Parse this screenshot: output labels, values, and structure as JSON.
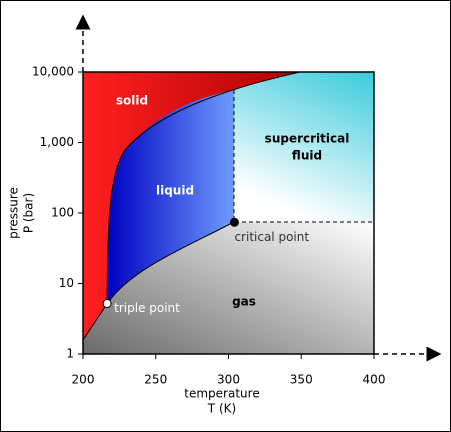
{
  "chart_data": {
    "type": "phase-diagram",
    "xlabel": [
      "temperature",
      "T (K)"
    ],
    "ylabel": [
      "pressure",
      "P (bar)"
    ],
    "xlim": [
      200,
      400
    ],
    "ylim": [
      1,
      10000
    ],
    "ylog": true,
    "xticks": [
      200,
      250,
      300,
      350,
      400
    ],
    "yticks": [
      1,
      10,
      100,
      {
        "value": 1000,
        "label": "1,000"
      },
      {
        "value": 10000,
        "label": "10,000"
      }
    ],
    "regions": [
      [
        "solid"
      ],
      [
        "liquid"
      ],
      [
        "supercritical",
        "fluid"
      ],
      [
        "gas"
      ]
    ],
    "series": [
      {
        "name": "triple point",
        "x": [
          216.6
        ],
        "values": [
          5.2
        ]
      },
      {
        "name": "critical point",
        "x": [
          304.1
        ],
        "values": [
          73.8
        ]
      }
    ]
  }
}
